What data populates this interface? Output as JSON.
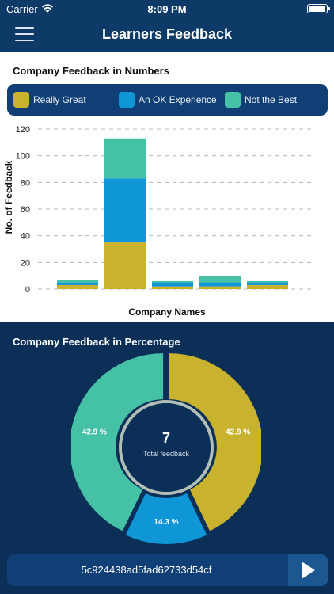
{
  "status_bar": {
    "carrier": "Carrier",
    "time": "8:09 PM"
  },
  "nav": {
    "title": "Learners Feedback"
  },
  "section_numbers": {
    "title": "Company Feedback in Numbers",
    "legend": [
      {
        "label": "Really Great",
        "color": "#c9b22d"
      },
      {
        "label": "An OK Experience",
        "color": "#0e96d6"
      },
      {
        "label": "Not the Best",
        "color": "#45c1a6"
      }
    ]
  },
  "section_percentage": {
    "title": "Company Feedback in Percentage",
    "total_value": "7",
    "total_label": "Total feedback"
  },
  "footer": {
    "hash": "5c924438ad5fad62733d54cf"
  },
  "chart_data": [
    {
      "type": "bar",
      "stacked": true,
      "categories": [
        "",
        "",
        "",
        "",
        ""
      ],
      "series": [
        {
          "name": "Really Great",
          "color": "#c9b22d",
          "values": [
            3,
            35,
            2,
            2,
            3
          ]
        },
        {
          "name": "An OK Experience",
          "color": "#0e96d6",
          "values": [
            2,
            48,
            3,
            3,
            2
          ]
        },
        {
          "name": "Not the Best",
          "color": "#45c1a6",
          "values": [
            2,
            30,
            1,
            5,
            1
          ]
        }
      ],
      "xlabel": "Company Names",
      "ylabel": "No. of Feedback",
      "ylim": [
        0,
        120
      ],
      "yticks": [
        0,
        20,
        40,
        60,
        80,
        100,
        120
      ],
      "grid": true
    },
    {
      "type": "pie",
      "donut": true,
      "slices": [
        {
          "name": "Really Great",
          "value": 42.9,
          "label": "42.9 %",
          "color": "#c9b22d"
        },
        {
          "name": "An OK Experience",
          "value": 14.3,
          "label": "14.3 %",
          "color": "#0e96d6"
        },
        {
          "name": "Not the Best",
          "value": 42.9,
          "label": "42.9 %",
          "color": "#45c1a6"
        }
      ]
    }
  ]
}
